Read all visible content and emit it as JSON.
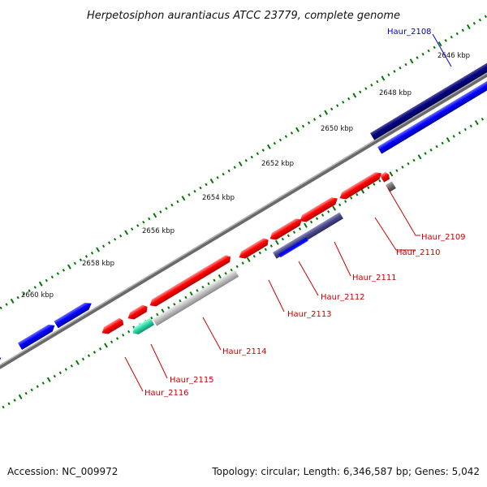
{
  "title": "Herpetosiphon aurantiacus ATCC 23779, complete genome",
  "footer": {
    "accession": "Accession: NC_009972",
    "summary": "Topology: circular; Length: 6,346,587 bp; Genes: 5,042"
  },
  "ticks": [
    "2646 kbp",
    "2648 kbp",
    "2650 kbp",
    "2652 kbp",
    "2654 kbp",
    "2656 kbp",
    "2658 kbp",
    "2660 kbp"
  ],
  "colors": {
    "forward_gene": "#ff0000",
    "reverse_gene_blue": "#0000ff",
    "reverse_gene_navy": "#000080",
    "pseudo_gene": "#c0c0c0",
    "rna_gene": "#2bd9a8",
    "cyan_gene": "#1fb8c0",
    "backbone": "#808080",
    "tick": "#007700",
    "label_red": "#cc0000",
    "label_blue": "#0000cc"
  },
  "genes": [
    {
      "id": "Haur_2108",
      "color": "navy"
    },
    {
      "id": "Haur_2109",
      "color": "red"
    },
    {
      "id": "Haur_2110",
      "color": "red"
    },
    {
      "id": "Haur_2111",
      "color": "red"
    },
    {
      "id": "Haur_2112",
      "color": "red"
    },
    {
      "id": "Haur_2113",
      "color": "red"
    },
    {
      "id": "Haur_2114",
      "color": "red"
    },
    {
      "id": "Haur_2115",
      "color": "red"
    },
    {
      "id": "Haur_2116",
      "color": "red"
    }
  ]
}
